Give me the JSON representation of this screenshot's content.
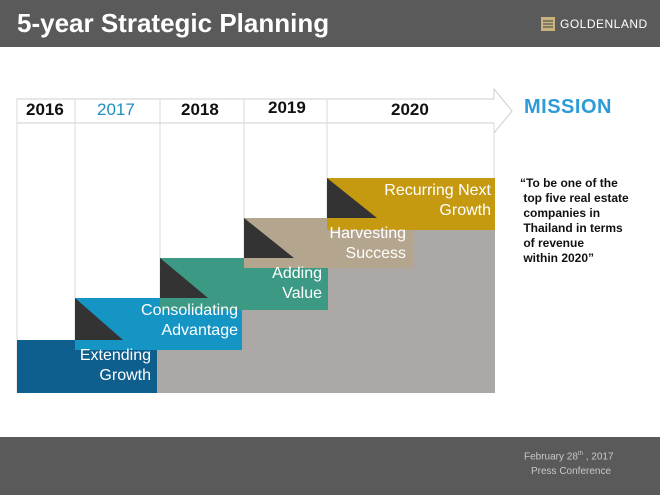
{
  "header": {
    "title": "5-year Strategic Planning",
    "logo_text": "GOLDENLAND"
  },
  "timeline": {
    "years": [
      {
        "label": "2016",
        "color": "#111111"
      },
      {
        "label": "2017",
        "color": "#1e90c0"
      },
      {
        "label": "2018",
        "color": "#111111"
      },
      {
        "label": "2019",
        "color": "#111111"
      },
      {
        "label": "2020",
        "color": "#111111"
      }
    ]
  },
  "steps": [
    {
      "line1": "Extending",
      "line2": "Growth",
      "color": "#0e5f8e"
    },
    {
      "line1": "Consolidating",
      "line2": "Advantage",
      "color": "#1595c4"
    },
    {
      "line1": "Adding",
      "line2": "Value",
      "color": "#3c9a84"
    },
    {
      "line1": "Harvesting",
      "line2": "Success",
      "color": "#b4a68e"
    },
    {
      "line1": "Recurring Next",
      "line2": "Growth",
      "color": "#c69a10"
    }
  ],
  "mission": {
    "heading": "MISSION",
    "quote": "“To be one of the\n top five real estate\n companies in\n Thailand in terms\n of revenue\n within 2020”"
  },
  "footer": {
    "date_main": "February 28",
    "date_sup": "th",
    "date_year": " , 2017",
    "event": "Press Conference"
  }
}
